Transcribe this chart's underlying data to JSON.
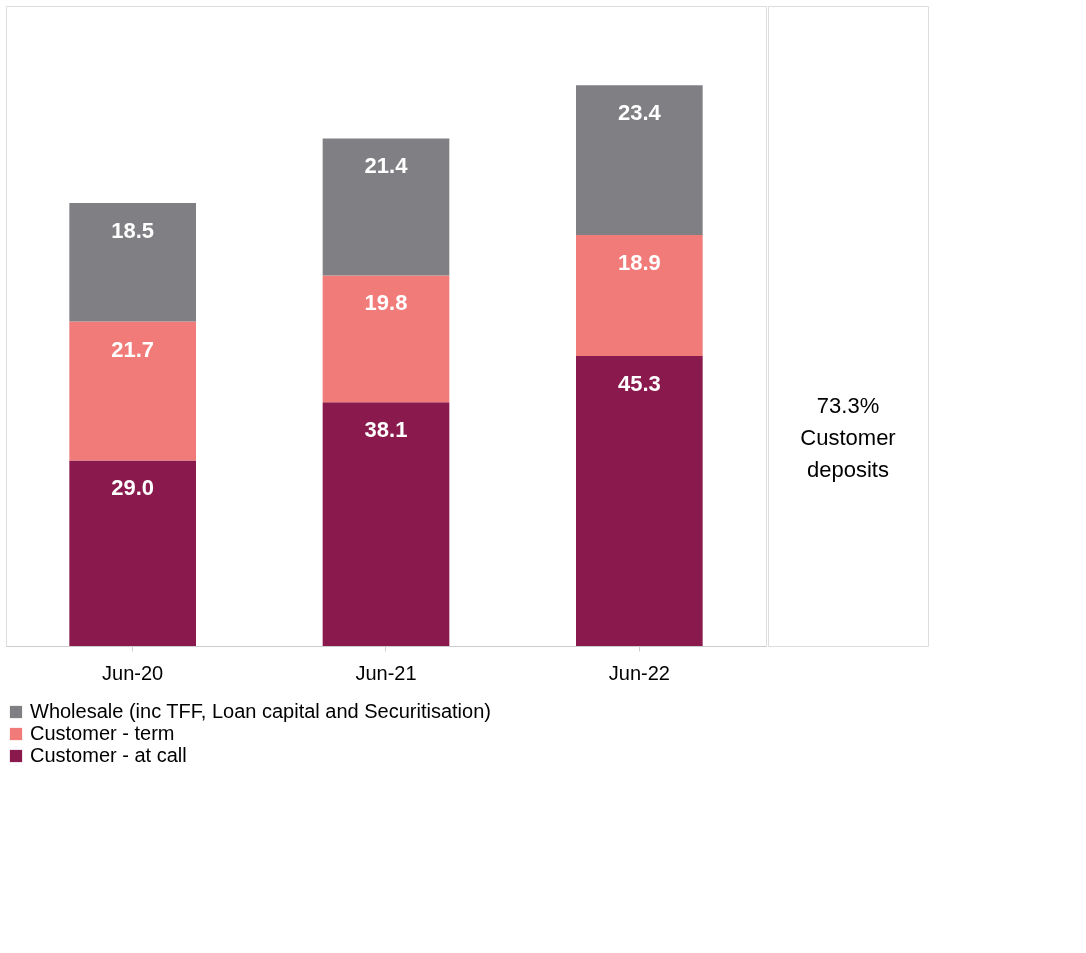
{
  "chart_data": {
    "type": "bar",
    "stacked": true,
    "categories": [
      "Jun-20",
      "Jun-21",
      "Jun-22"
    ],
    "series": [
      {
        "name": "Customer - at call",
        "color": "#8a1a4d",
        "values": [
          29.0,
          38.1,
          45.3
        ],
        "value_labels": [
          "29.0",
          "38.1",
          "45.3"
        ]
      },
      {
        "name": "Customer - term",
        "color": "#f07b78",
        "values": [
          21.7,
          19.8,
          18.9
        ],
        "value_labels": [
          "21.7",
          "19.8",
          "18.9"
        ]
      },
      {
        "name": "Wholesale (inc TFF, Loan capital and Securitisation)",
        "color": "#808084",
        "values": [
          18.5,
          21.4,
          23.4
        ],
        "value_labels": [
          "18.5",
          "21.4",
          "23.4"
        ]
      }
    ],
    "legend": "bottom",
    "annotations": [
      "73.3%\nCustomer\ndeposits"
    ]
  }
}
